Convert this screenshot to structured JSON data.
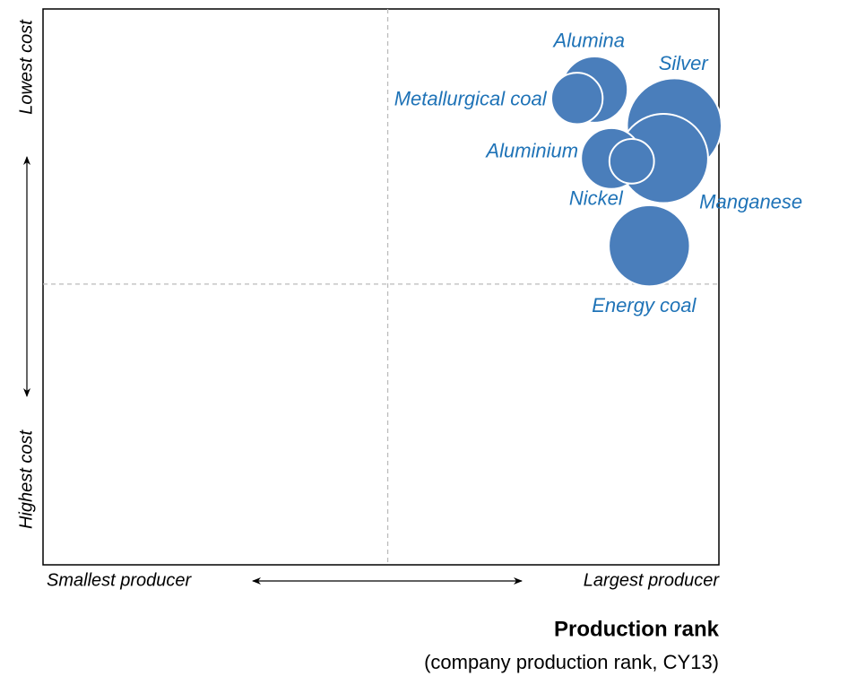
{
  "chart_data": {
    "type": "bubble",
    "x_axis_title": "Production rank",
    "x_axis_subtitle": "(company production rank, CY13)",
    "x_low_label": "Smallest producer",
    "x_high_label": "Largest producer",
    "y_low_label": "Highest cost",
    "y_high_label": "Lowest cost",
    "xlim": [
      0,
      100
    ],
    "ylim": [
      0,
      100
    ],
    "quadrant_lines": {
      "x": 51,
      "y": 50.5
    },
    "color": "#4a7ebb",
    "labels": [
      "Alumina",
      "Metallurgical coal",
      "Silver",
      "Manganese",
      "Aluminium",
      "Nickel",
      "Energy coal"
    ],
    "x": [
      81.6,
      79.0,
      93.4,
      91.8,
      84.1,
      87.1,
      89.7
    ],
    "values": [
      85.5,
      83.9,
      79.0,
      73.1,
      73.1,
      72.6,
      57.4
    ],
    "sizes": [
      4.9,
      3.8,
      7.0,
      6.6,
      4.5,
      3.3,
      6.0
    ]
  }
}
